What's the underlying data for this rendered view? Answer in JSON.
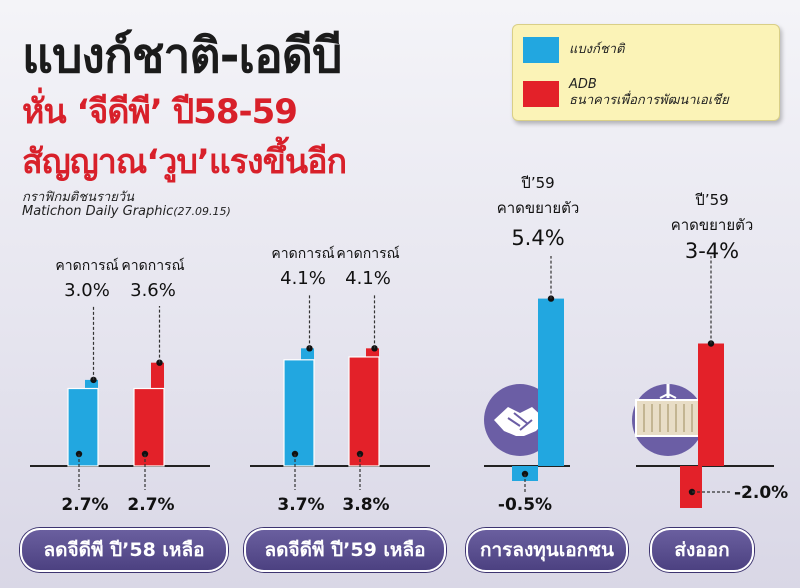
{
  "header": {
    "title_line1": "แบงก์ชาติ-เอดีบี",
    "title_line2": "หั่น ‘จีดีพี’ ปี58-59",
    "title_line3": "สัญญาณ‘วูบ’แรงขึ้นอีก",
    "source_th": "กราฟิกมติชนรายวัน",
    "source_en": "Matichon Daily Graphic",
    "source_date": "(27.09.15)"
  },
  "legend": {
    "items": [
      {
        "label": "แบงก์ชาติ",
        "color": "#22a7e0"
      },
      {
        "label": "ADB",
        "label2": "ธนาคารเพื่อการพัฒนาเอเชีย",
        "color": "#e32129"
      }
    ]
  },
  "colors": {
    "bot": "#22a7e0",
    "adb": "#e32129",
    "pill": "#56498a",
    "icon": "#6b5ea5"
  },
  "icons": [
    "handshake-icon",
    "cargo-container-icon"
  ],
  "chart_data": [
    {
      "type": "bar",
      "category": "ลดจีดีพี ปี’58 เหลือ",
      "series": [
        {
          "name": "แบงก์ชาติ",
          "forecast": 3.0,
          "forecast_label": "3.0%",
          "forecast_caption": "คาดการณ์",
          "value": 2.7,
          "value_label": "2.7%"
        },
        {
          "name": "ADB",
          "forecast": 3.6,
          "forecast_label": "3.6%",
          "forecast_caption": "คาดการณ์",
          "value": 2.7,
          "value_label": "2.7%"
        }
      ]
    },
    {
      "type": "bar",
      "category": "ลดจีดีพี ปี’59 เหลือ",
      "series": [
        {
          "name": "แบงก์ชาติ",
          "forecast": 4.1,
          "forecast_label": "4.1%",
          "forecast_caption": "คาดการณ์",
          "value": 3.7,
          "value_label": "3.7%"
        },
        {
          "name": "ADB",
          "forecast": 4.1,
          "forecast_label": "4.1%",
          "forecast_caption": "คาดการณ์",
          "value": 3.8,
          "value_label": "3.8%"
        }
      ]
    },
    {
      "type": "bar",
      "category": "การลงทุนเอกชน",
      "series": [
        {
          "name": "แบงก์ชาติ",
          "forecast": 5.4,
          "forecast_label": "5.4%",
          "forecast_caption": "ปี’59 คาดขยายตัว",
          "value": -0.5,
          "value_label": "-0.5%"
        }
      ]
    },
    {
      "type": "bar",
      "category": "ส่งออก",
      "series": [
        {
          "name": "ADB",
          "forecast": 3.5,
          "forecast_label": "3-4%",
          "forecast_caption": "ปี’59 คาดขยายตัว",
          "value": -2.0,
          "value_label": "-2.0%"
        }
      ]
    }
  ]
}
